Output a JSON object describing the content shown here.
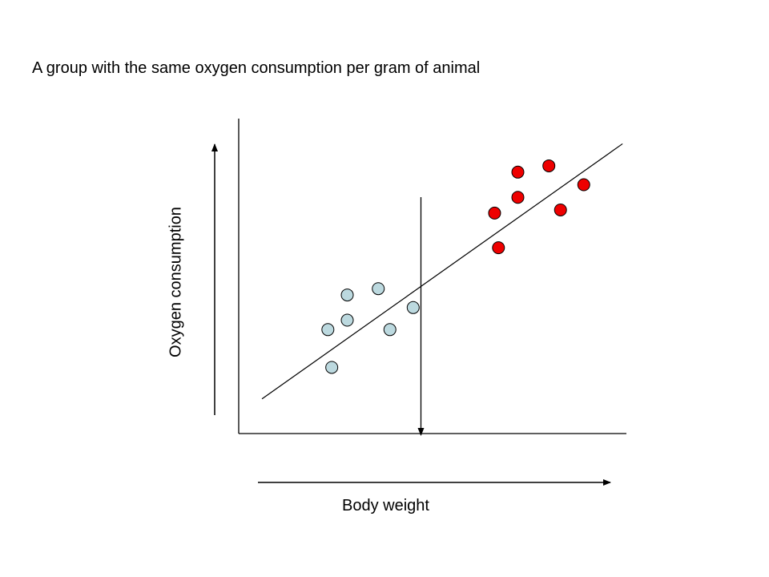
{
  "title": "A group with the same oxygen consumption per gram of animal",
  "x_axis_label": "Body weight",
  "y_axis_label": "Oxygen consumption",
  "colors": {
    "light_group_fill": "#bcd9df",
    "red_group_fill": "#ee0000",
    "stroke": "#000000"
  },
  "chart_data": {
    "type": "scatter",
    "xlim": [
      0,
      100
    ],
    "ylim": [
      0,
      100
    ],
    "series": [
      {
        "points": [
          {
            "x": 23,
            "y": 33
          },
          {
            "x": 24,
            "y": 21
          },
          {
            "x": 28,
            "y": 44
          },
          {
            "x": 28,
            "y": 36
          },
          {
            "x": 36,
            "y": 46
          },
          {
            "x": 39,
            "y": 33
          },
          {
            "x": 45,
            "y": 40
          }
        ]
      },
      {
        "points": [
          {
            "x": 66,
            "y": 70
          },
          {
            "x": 67,
            "y": 59
          },
          {
            "x": 72,
            "y": 83
          },
          {
            "x": 72,
            "y": 75
          },
          {
            "x": 80,
            "y": 85
          },
          {
            "x": 83,
            "y": 71
          },
          {
            "x": 89,
            "y": 79
          }
        ]
      }
    ],
    "trend_line": {
      "x1": 6,
      "y1": 11,
      "x2": 99,
      "y2": 92
    },
    "cutoff_x": 47
  }
}
